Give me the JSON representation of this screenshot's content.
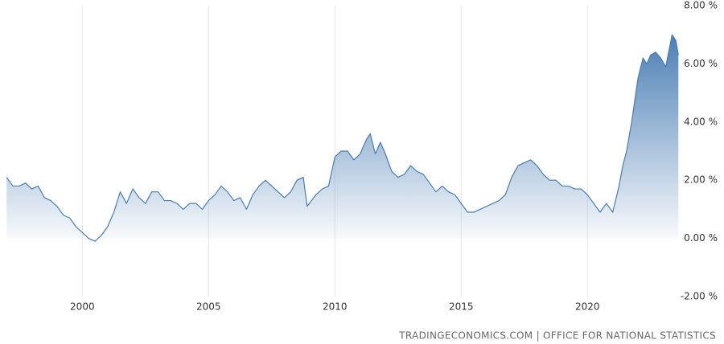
{
  "chart_data": {
    "type": "area",
    "source": "TRADINGECONOMICS.COM | OFFICE FOR NATIONAL STATISTICS",
    "color": "#4a7db3",
    "grid": true,
    "xlim": [
      1996.9,
      2023.75
    ],
    "xticks": [
      2000,
      2005,
      2010,
      2015,
      2020
    ],
    "ylim": [
      -2,
      8
    ],
    "yticks": [
      {
        "value": -2,
        "label": "-2.00 %"
      },
      {
        "value": 0,
        "label": "0.00 %"
      },
      {
        "value": 2,
        "label": "2.00 %"
      },
      {
        "value": 4,
        "label": "4.00 %"
      },
      {
        "value": 6,
        "label": "6.00 %"
      },
      {
        "value": 8,
        "label": "8.00 %"
      }
    ],
    "x": [
      1997.0,
      1997.25,
      1997.5,
      1997.75,
      1998.0,
      1998.25,
      1998.5,
      1998.75,
      1999.0,
      1999.25,
      1999.5,
      1999.75,
      2000.0,
      2000.25,
      2000.5,
      2000.75,
      2001.0,
      2001.25,
      2001.5,
      2001.75,
      2002.0,
      2002.25,
      2002.5,
      2002.75,
      2003.0,
      2003.25,
      2003.5,
      2003.75,
      2004.0,
      2004.25,
      2004.5,
      2004.75,
      2005.0,
      2005.25,
      2005.5,
      2005.75,
      2006.0,
      2006.25,
      2006.5,
      2006.75,
      2007.0,
      2007.25,
      2007.5,
      2007.75,
      2008.0,
      2008.25,
      2008.5,
      2008.75,
      2008.9,
      2009.25,
      2009.5,
      2009.75,
      2010.0,
      2010.25,
      2010.5,
      2010.75,
      2011.0,
      2011.25,
      2011.4,
      2011.6,
      2011.8,
      2012.0,
      2012.25,
      2012.5,
      2012.75,
      2013.0,
      2013.25,
      2013.5,
      2013.75,
      2014.0,
      2014.25,
      2014.5,
      2014.75,
      2015.0,
      2015.25,
      2015.5,
      2015.75,
      2016.0,
      2016.25,
      2016.5,
      2016.75,
      2017.0,
      2017.25,
      2017.5,
      2017.75,
      2018.0,
      2018.25,
      2018.5,
      2018.75,
      2019.0,
      2019.25,
      2019.5,
      2019.75,
      2020.0,
      2020.25,
      2020.5,
      2020.75,
      2021.0,
      2021.25,
      2021.4,
      2021.55,
      2021.75,
      2022.0,
      2022.2,
      2022.35,
      2022.5,
      2022.7,
      2022.9,
      2023.1,
      2023.35,
      2023.5,
      2023.6
    ],
    "values": [
      2.1,
      1.8,
      1.8,
      1.9,
      1.7,
      1.8,
      1.4,
      1.3,
      1.1,
      0.8,
      0.7,
      0.4,
      0.2,
      0.0,
      -0.1,
      0.1,
      0.4,
      0.9,
      1.6,
      1.2,
      1.7,
      1.4,
      1.2,
      1.6,
      1.6,
      1.3,
      1.3,
      1.2,
      1.0,
      1.2,
      1.2,
      1.0,
      1.3,
      1.5,
      1.8,
      1.6,
      1.3,
      1.4,
      1.0,
      1.5,
      1.8,
      2.0,
      1.8,
      1.6,
      1.4,
      1.6,
      2.0,
      2.1,
      1.1,
      1.5,
      1.7,
      1.8,
      2.8,
      3.0,
      3.0,
      2.7,
      2.9,
      3.4,
      3.6,
      2.9,
      3.3,
      2.9,
      2.3,
      2.1,
      2.2,
      2.5,
      2.3,
      2.2,
      1.9,
      1.6,
      1.8,
      1.6,
      1.5,
      1.2,
      0.9,
      0.9,
      1.0,
      1.1,
      1.2,
      1.3,
      1.5,
      2.1,
      2.5,
      2.6,
      2.7,
      2.5,
      2.2,
      2.0,
      2.0,
      1.8,
      1.8,
      1.7,
      1.7,
      1.5,
      1.2,
      0.9,
      1.2,
      0.9,
      1.8,
      2.5,
      3.0,
      4.0,
      5.5,
      6.2,
      6.0,
      6.3,
      6.4,
      6.2,
      5.9,
      7.0,
      6.8,
      6.3
    ]
  }
}
